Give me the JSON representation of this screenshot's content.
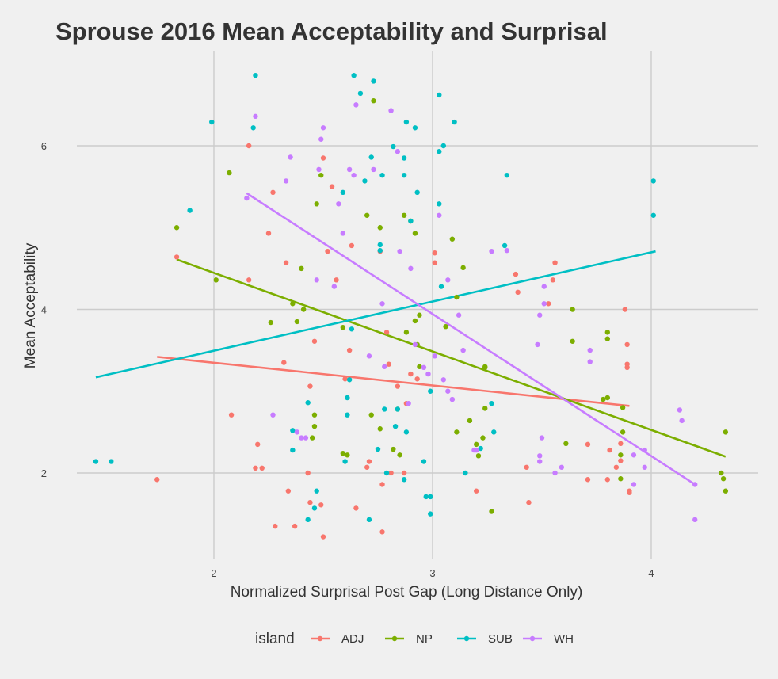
{
  "chart_data": {
    "type": "scatter",
    "title": "Sprouse 2016 Mean Acceptability and Surprisal",
    "xlabel": "Normalized Surprisal Post Gap (Long Distance Only)",
    "ylabel": "Mean Acceptability",
    "xlim": [
      1.4,
      4.5
    ],
    "ylim": [
      1.1,
      6.95
    ],
    "x_ticks": [
      "2",
      "3",
      "4"
    ],
    "y_ticks": [
      "2",
      "4",
      "6"
    ],
    "grid": true,
    "legend": {
      "title": "island",
      "position": "bottom"
    },
    "series": [
      {
        "name": "ADJ",
        "color": "#F8766D",
        "points": [
          [
            1.74,
            1.92
          ],
          [
            1.83,
            4.64
          ],
          [
            2.08,
            2.71
          ],
          [
            2.16,
            6.0
          ],
          [
            2.16,
            4.36
          ],
          [
            2.19,
            2.06
          ],
          [
            2.2,
            2.35
          ],
          [
            2.22,
            2.06
          ],
          [
            2.25,
            4.93
          ],
          [
            2.27,
            5.43
          ],
          [
            2.28,
            1.35
          ],
          [
            2.32,
            3.35
          ],
          [
            2.33,
            4.57
          ],
          [
            2.34,
            1.78
          ],
          [
            2.37,
            1.35
          ],
          [
            2.43,
            2.0
          ],
          [
            2.44,
            1.64
          ],
          [
            2.44,
            3.06
          ],
          [
            2.46,
            3.61
          ],
          [
            2.49,
            1.61
          ],
          [
            2.5,
            1.22
          ],
          [
            2.5,
            5.85
          ],
          [
            2.52,
            4.71
          ],
          [
            2.54,
            5.5
          ],
          [
            2.56,
            4.36
          ],
          [
            2.6,
            3.15
          ],
          [
            2.62,
            3.5
          ],
          [
            2.63,
            4.78
          ],
          [
            2.65,
            1.57
          ],
          [
            2.7,
            2.07
          ],
          [
            2.71,
            2.14
          ],
          [
            2.76,
            4.71
          ],
          [
            2.77,
            1.28
          ],
          [
            2.77,
            1.86
          ],
          [
            2.79,
            3.72
          ],
          [
            2.8,
            3.33
          ],
          [
            2.81,
            2.0
          ],
          [
            2.84,
            3.06
          ],
          [
            2.87,
            2.0
          ],
          [
            2.88,
            2.85
          ],
          [
            2.9,
            3.21
          ],
          [
            2.93,
            3.15
          ],
          [
            3.01,
            4.57
          ],
          [
            3.01,
            4.69
          ],
          [
            3.2,
            1.78
          ],
          [
            3.38,
            4.43
          ],
          [
            3.39,
            4.21
          ],
          [
            3.43,
            2.07
          ],
          [
            3.44,
            1.64
          ],
          [
            3.53,
            4.07
          ],
          [
            3.55,
            4.36
          ],
          [
            3.56,
            4.57
          ],
          [
            3.71,
            2.35
          ],
          [
            3.71,
            1.92
          ],
          [
            3.8,
            1.92
          ],
          [
            3.81,
            2.28
          ],
          [
            3.84,
            2.07
          ],
          [
            3.86,
            2.36
          ],
          [
            3.86,
            2.15
          ],
          [
            3.88,
            4.0
          ],
          [
            3.89,
            3.57
          ],
          [
            3.89,
            3.29
          ],
          [
            3.89,
            3.33
          ],
          [
            3.9,
            1.78
          ],
          [
            3.9,
            1.76
          ]
        ]
      },
      {
        "name": "NP",
        "color": "#7CAE00",
        "points": [
          [
            1.83,
            5.0
          ],
          [
            2.01,
            4.36
          ],
          [
            2.07,
            5.67
          ],
          [
            2.26,
            3.84
          ],
          [
            2.36,
            4.07
          ],
          [
            2.38,
            3.85
          ],
          [
            2.4,
            4.5
          ],
          [
            2.41,
            4.0
          ],
          [
            2.45,
            2.43
          ],
          [
            2.46,
            2.57
          ],
          [
            2.46,
            2.71
          ],
          [
            2.47,
            5.29
          ],
          [
            2.49,
            5.64
          ],
          [
            2.59,
            3.78
          ],
          [
            2.59,
            2.24
          ],
          [
            2.61,
            2.22
          ],
          [
            2.7,
            5.15
          ],
          [
            2.72,
            2.71
          ],
          [
            2.73,
            6.55
          ],
          [
            2.76,
            2.54
          ],
          [
            2.76,
            5.0
          ],
          [
            2.82,
            2.29
          ],
          [
            2.84,
            2.78
          ],
          [
            2.85,
            2.22
          ],
          [
            2.87,
            5.15
          ],
          [
            2.88,
            3.72
          ],
          [
            2.9,
            5.08
          ],
          [
            2.92,
            3.86
          ],
          [
            2.92,
            4.93
          ],
          [
            2.93,
            3.57
          ],
          [
            2.94,
            3.3
          ],
          [
            2.94,
            3.93
          ],
          [
            3.06,
            3.79
          ],
          [
            3.09,
            4.86
          ],
          [
            3.11,
            4.15
          ],
          [
            3.11,
            2.5
          ],
          [
            3.14,
            4.51
          ],
          [
            3.17,
            2.64
          ],
          [
            3.2,
            2.35
          ],
          [
            3.21,
            2.21
          ],
          [
            3.23,
            2.43
          ],
          [
            3.24,
            3.29
          ],
          [
            3.24,
            3.3
          ],
          [
            3.24,
            2.79
          ],
          [
            3.27,
            1.53
          ],
          [
            3.61,
            2.36
          ],
          [
            3.64,
            4.0
          ],
          [
            3.64,
            3.61
          ],
          [
            3.78,
            2.9
          ],
          [
            3.8,
            2.92
          ],
          [
            3.8,
            3.72
          ],
          [
            3.8,
            3.64
          ],
          [
            3.86,
            2.22
          ],
          [
            3.86,
            1.93
          ],
          [
            3.87,
            2.8
          ],
          [
            3.87,
            2.5
          ],
          [
            4.32,
            2.0
          ],
          [
            4.33,
            1.93
          ],
          [
            4.34,
            2.5
          ],
          [
            4.34,
            1.78
          ]
        ]
      },
      {
        "name": "SUB",
        "color": "#00BFC4",
        "points": [
          [
            1.46,
            2.14
          ],
          [
            1.53,
            2.14
          ],
          [
            1.89,
            5.21
          ],
          [
            1.99,
            6.29
          ],
          [
            2.18,
            6.22
          ],
          [
            2.19,
            6.86
          ],
          [
            2.36,
            2.28
          ],
          [
            2.36,
            2.52
          ],
          [
            2.43,
            1.43
          ],
          [
            2.43,
            2.86
          ],
          [
            2.46,
            1.57
          ],
          [
            2.47,
            1.78
          ],
          [
            2.59,
            5.43
          ],
          [
            2.6,
            2.14
          ],
          [
            2.61,
            2.71
          ],
          [
            2.61,
            2.92
          ],
          [
            2.62,
            3.14
          ],
          [
            2.63,
            3.76
          ],
          [
            2.64,
            6.86
          ],
          [
            2.67,
            6.64
          ],
          [
            2.69,
            5.57
          ],
          [
            2.71,
            1.43
          ],
          [
            2.72,
            5.86
          ],
          [
            2.73,
            6.79
          ],
          [
            2.75,
            2.29
          ],
          [
            2.76,
            4.72
          ],
          [
            2.76,
            4.79
          ],
          [
            2.77,
            5.64
          ],
          [
            2.78,
            2.78
          ],
          [
            2.79,
            2.0
          ],
          [
            2.82,
            5.99
          ],
          [
            2.83,
            2.57
          ],
          [
            2.84,
            2.78
          ],
          [
            2.87,
            5.85
          ],
          [
            2.87,
            5.64
          ],
          [
            2.87,
            1.92
          ],
          [
            2.88,
            2.5
          ],
          [
            2.88,
            6.29
          ],
          [
            2.9,
            5.08
          ],
          [
            2.92,
            6.22
          ],
          [
            2.93,
            5.43
          ],
          [
            2.96,
            2.14
          ],
          [
            2.97,
            1.71
          ],
          [
            2.99,
            1.5
          ],
          [
            2.99,
            3.0
          ],
          [
            2.99,
            1.71
          ],
          [
            3.03,
            6.62
          ],
          [
            3.03,
            5.29
          ],
          [
            3.03,
            5.93
          ],
          [
            3.04,
            4.28
          ],
          [
            3.05,
            6.0
          ],
          [
            3.1,
            6.29
          ],
          [
            3.15,
            2.0
          ],
          [
            3.22,
            2.3
          ],
          [
            3.27,
            2.85
          ],
          [
            3.28,
            2.5
          ],
          [
            3.33,
            4.78
          ],
          [
            3.34,
            5.64
          ],
          [
            4.01,
            5.57
          ],
          [
            4.01,
            5.15
          ]
        ]
      },
      {
        "name": "WH",
        "color": "#C77CFF",
        "points": [
          [
            2.15,
            5.36
          ],
          [
            2.19,
            6.36
          ],
          [
            2.27,
            2.71
          ],
          [
            2.33,
            5.57
          ],
          [
            2.35,
            5.86
          ],
          [
            2.38,
            2.5
          ],
          [
            2.4,
            2.43
          ],
          [
            2.42,
            2.43
          ],
          [
            2.47,
            4.36
          ],
          [
            2.48,
            5.71
          ],
          [
            2.49,
            6.08
          ],
          [
            2.5,
            6.22
          ],
          [
            2.55,
            4.28
          ],
          [
            2.57,
            5.29
          ],
          [
            2.59,
            4.93
          ],
          [
            2.62,
            5.71
          ],
          [
            2.64,
            5.64
          ],
          [
            2.65,
            6.5
          ],
          [
            2.71,
            3.43
          ],
          [
            2.73,
            5.71
          ],
          [
            2.77,
            4.07
          ],
          [
            2.78,
            3.3
          ],
          [
            2.81,
            6.43
          ],
          [
            2.84,
            5.93
          ],
          [
            2.85,
            4.71
          ],
          [
            2.89,
            2.85
          ],
          [
            2.9,
            4.5
          ],
          [
            2.92,
            3.57
          ],
          [
            2.96,
            3.29
          ],
          [
            2.98,
            3.21
          ],
          [
            3.01,
            3.43
          ],
          [
            3.03,
            5.15
          ],
          [
            3.05,
            3.14
          ],
          [
            3.07,
            3.0
          ],
          [
            3.07,
            4.36
          ],
          [
            3.09,
            2.9
          ],
          [
            3.12,
            3.93
          ],
          [
            3.14,
            3.5
          ],
          [
            3.19,
            2.28
          ],
          [
            3.2,
            2.28
          ],
          [
            3.27,
            4.71
          ],
          [
            3.34,
            4.72
          ],
          [
            3.48,
            3.57
          ],
          [
            3.49,
            3.93
          ],
          [
            3.49,
            2.21
          ],
          [
            3.49,
            2.14
          ],
          [
            3.5,
            2.43
          ],
          [
            3.51,
            4.07
          ],
          [
            3.51,
            4.28
          ],
          [
            3.56,
            2.0
          ],
          [
            3.59,
            2.07
          ],
          [
            3.72,
            3.36
          ],
          [
            3.72,
            3.5
          ],
          [
            3.92,
            2.22
          ],
          [
            3.92,
            1.86
          ],
          [
            3.97,
            2.28
          ],
          [
            3.97,
            2.07
          ],
          [
            4.13,
            2.77
          ],
          [
            4.14,
            2.64
          ],
          [
            4.2,
            1.86
          ],
          [
            4.2,
            1.43
          ]
        ]
      }
    ],
    "trend_lines": [
      {
        "name": "ADJ",
        "color": "#F8766D",
        "x": [
          1.74,
          3.9
        ],
        "y": [
          3.42,
          2.82
        ]
      },
      {
        "name": "NP",
        "color": "#7CAE00",
        "x": [
          1.83,
          4.34
        ],
        "y": [
          4.61,
          2.2
        ]
      },
      {
        "name": "SUB",
        "color": "#00BFC4",
        "x": [
          1.46,
          4.02
        ],
        "y": [
          3.17,
          4.71
        ]
      },
      {
        "name": "WH",
        "color": "#C77CFF",
        "x": [
          2.15,
          4.2
        ],
        "y": [
          5.42,
          1.86
        ]
      }
    ]
  }
}
